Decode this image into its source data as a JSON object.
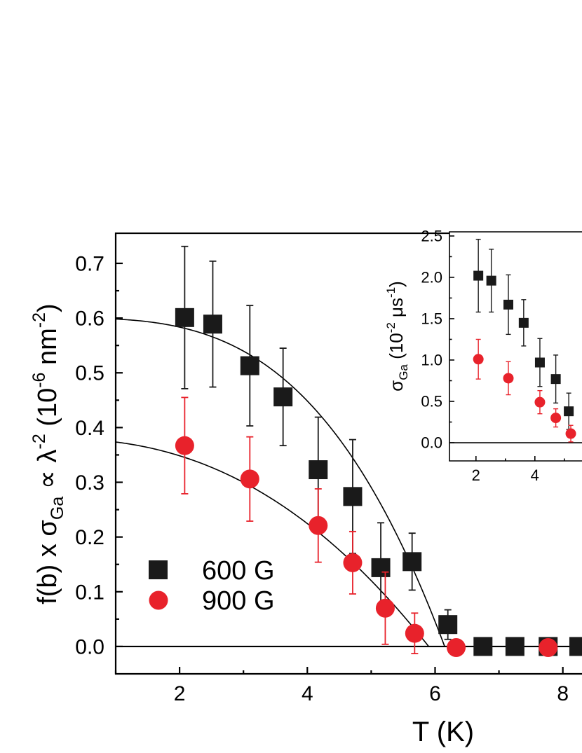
{
  "chart_data": [
    {
      "type": "scatter",
      "xlabel": "T (K)",
      "ylabel": "f(b) x σ_Ga ∝ λ^-2 (10^-6 nm^-2)",
      "ylabel_parts": {
        "pre": "f(b) x σ",
        "sub1": "Ga",
        "mid": " ∝ λ",
        "sup1": "-2",
        "units_open": " (10",
        "sup2": "-6",
        "units_mid": " nm",
        "sup3": "-2",
        "units_close": ")"
      },
      "xlim": [
        1,
        8.3
      ],
      "ylim": [
        -0.05,
        0.755
      ],
      "xticks": [
        "2",
        "4",
        "6",
        "8"
      ],
      "xtick_values": [
        2,
        4,
        6,
        8
      ],
      "yticks": [
        "0.0",
        "0.1",
        "0.2",
        "0.3",
        "0.4",
        "0.5",
        "0.6",
        "0.7"
      ],
      "ytick_values": [
        0.0,
        0.1,
        0.2,
        0.3,
        0.4,
        0.5,
        0.6,
        0.7
      ],
      "grid": false,
      "legend_position": "bottom-left",
      "series": [
        {
          "name": "600 G",
          "marker": "square",
          "color": "#1a1a1a",
          "errcolor": "#1a1a1a",
          "points": [
            {
              "x": 2.08,
              "y": 0.601,
              "err": 0.13
            },
            {
              "x": 2.52,
              "y": 0.589,
              "err": 0.115
            },
            {
              "x": 3.1,
              "y": 0.513,
              "err": 0.11
            },
            {
              "x": 3.62,
              "y": 0.456,
              "err": 0.089
            },
            {
              "x": 4.17,
              "y": 0.323,
              "err": 0.096
            },
            {
              "x": 4.71,
              "y": 0.274,
              "err": 0.104
            },
            {
              "x": 5.15,
              "y": 0.144,
              "err": 0.082
            },
            {
              "x": 5.64,
              "y": 0.155,
              "err": 0.052
            },
            {
              "x": 6.2,
              "y": 0.04,
              "err": 0.027
            },
            {
              "x": 6.75,
              "y": 0.0,
              "err": 0
            },
            {
              "x": 7.25,
              "y": 0.0,
              "err": 0
            },
            {
              "x": 7.77,
              "y": 0.0,
              "err": 0
            },
            {
              "x": 8.25,
              "y": 0.0,
              "err": 0
            }
          ],
          "fit": {
            "a": 0.6,
            "tc": 6.15,
            "p": 3.2
          }
        },
        {
          "name": "900 G",
          "marker": "circle",
          "color": "#e8222b",
          "errcolor": "#e8222b",
          "points": [
            {
              "x": 2.08,
              "y": 0.367,
              "err": 0.088
            },
            {
              "x": 3.1,
              "y": 0.306,
              "err": 0.077
            },
            {
              "x": 4.17,
              "y": 0.221,
              "err": 0.067
            },
            {
              "x": 4.71,
              "y": 0.153,
              "err": 0.057
            },
            {
              "x": 5.22,
              "y": 0.07,
              "err": 0.066
            },
            {
              "x": 5.68,
              "y": 0.024,
              "err": 0.037
            },
            {
              "x": 6.33,
              "y": -0.002,
              "err": 0
            },
            {
              "x": 7.77,
              "y": -0.002,
              "err": 0
            }
          ],
          "fit": {
            "a": 0.38,
            "tc": 5.9,
            "p": 2.3
          }
        }
      ]
    },
    {
      "type": "scatter",
      "inset": true,
      "ylabel": "σ_Ga (10^-2 μs^-1)",
      "ylabel_parts": {
        "pre": "σ",
        "sub1": "Ga",
        "units_open": " (10",
        "sup1": "-2",
        "units_mid": " μs",
        "sup2": "-1",
        "units_close": ")"
      },
      "xlim": [
        1.1,
        5.6
      ],
      "ylim": [
        -0.22,
        2.55
      ],
      "xticks": [
        "2",
        "4"
      ],
      "xtick_values": [
        2,
        4
      ],
      "yticks": [
        "0.0",
        "0.5",
        "1.0",
        "1.5",
        "2.0",
        "2.5"
      ],
      "ytick_values": [
        0.0,
        0.5,
        1.0,
        1.5,
        2.0,
        2.5
      ],
      "grid": false,
      "series": [
        {
          "marker": "square",
          "color": "#1a1a1a",
          "errcolor": "#1a1a1a",
          "points": [
            {
              "x": 2.08,
              "y": 2.02,
              "err": 0.44
            },
            {
              "x": 2.52,
              "y": 1.96,
              "err": 0.38
            },
            {
              "x": 3.1,
              "y": 1.67,
              "err": 0.36
            },
            {
              "x": 3.62,
              "y": 1.45,
              "err": 0.28
            },
            {
              "x": 4.17,
              "y": 0.97,
              "err": 0.29
            },
            {
              "x": 4.71,
              "y": 0.77,
              "err": 0.29
            },
            {
              "x": 5.15,
              "y": 0.38,
              "err": 0.22
            }
          ]
        },
        {
          "marker": "circle",
          "color": "#e8222b",
          "errcolor": "#e8222b",
          "points": [
            {
              "x": 2.08,
              "y": 1.01,
              "err": 0.24
            },
            {
              "x": 3.1,
              "y": 0.78,
              "err": 0.2
            },
            {
              "x": 4.17,
              "y": 0.49,
              "err": 0.14
            },
            {
              "x": 4.71,
              "y": 0.3,
              "err": 0.11
            },
            {
              "x": 5.22,
              "y": 0.11,
              "err": 0.1
            }
          ]
        }
      ]
    }
  ]
}
